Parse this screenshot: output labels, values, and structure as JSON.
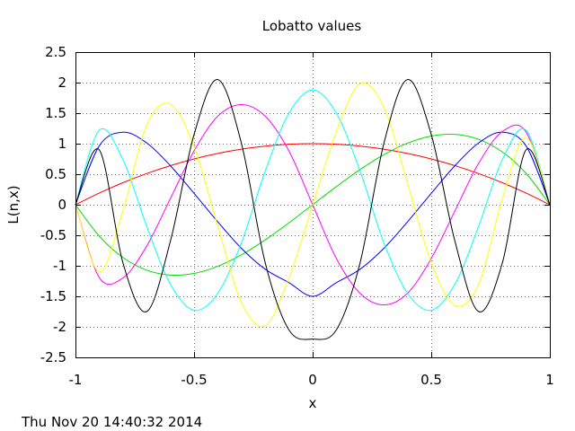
{
  "chart_data": {
    "type": "line",
    "title": "Lobatto values",
    "xlabel": "x",
    "ylabel": "L(n,x)",
    "xlim": [
      -1,
      1
    ],
    "ylim": [
      -2.5,
      2.5
    ],
    "grid": true,
    "legend": "none",
    "x_ticks": [
      "-1",
      "-0.5",
      "0",
      "0.5",
      "1"
    ],
    "y_ticks": [
      "-2.5",
      "-2",
      "-1.5",
      "-1",
      "-0.5",
      "0",
      "0.5",
      "1",
      "1.5",
      "2",
      "2.5"
    ],
    "x": [
      -1,
      -0.9,
      -0.8,
      -0.7,
      -0.6,
      -0.5,
      -0.4,
      -0.3,
      -0.2,
      -0.1,
      0,
      0.1,
      0.2,
      0.3,
      0.4,
      0.5,
      0.6,
      0.7,
      0.8,
      0.9,
      1
    ],
    "series": [
      {
        "color": "#ff0000",
        "values": [
          0,
          0.19,
          0.36,
          0.51,
          0.64,
          0.75,
          0.84,
          0.91,
          0.96,
          0.99,
          1,
          0.99,
          0.96,
          0.91,
          0.84,
          0.75,
          0.64,
          0.51,
          0.36,
          0.19,
          0
        ]
      },
      {
        "color": "#00dd00",
        "values": [
          0,
          -0.513,
          -0.864,
          -1.071,
          -1.152,
          -1.125,
          -1.008,
          -0.819,
          -0.576,
          -0.297,
          0,
          0.297,
          0.576,
          0.819,
          1.008,
          1.125,
          1.152,
          1.071,
          0.864,
          0.513,
          0
        ]
      },
      {
        "color": "#0000ff",
        "values": [
          0,
          0.962,
          1.188,
          1.013,
          0.64,
          0.187,
          -0.28,
          -0.715,
          -1.056,
          -1.276,
          -1.5,
          -1.276,
          -1.056,
          -0.715,
          -0.28,
          0.187,
          0.64,
          1.013,
          1.188,
          0.962,
          0
        ]
      },
      {
        "color": "#ff00ff",
        "values": [
          0,
          -1.19,
          -1.2,
          -0.68,
          0.1,
          0.88,
          1.45,
          1.64,
          1.45,
          0.88,
          0,
          -0.88,
          -1.45,
          -1.64,
          -1.45,
          -0.88,
          -0.1,
          0.68,
          1.2,
          1.19,
          0
        ]
      },
      {
        "color": "#00ffff",
        "values": [
          0,
          1.22,
          0.74,
          -0.35,
          -1.3,
          -1.73,
          -1.45,
          -0.62,
          0.55,
          1.5,
          1.88,
          1.5,
          0.55,
          -0.62,
          -1.45,
          -1.73,
          -1.3,
          -0.35,
          0.74,
          1.22,
          0
        ]
      },
      {
        "color": "#ffff00",
        "values": [
          0,
          -1.1,
          -0.1,
          1.3,
          1.65,
          0.95,
          -0.35,
          -1.6,
          -1.98,
          -1.2,
          0,
          1.2,
          1.98,
          1.6,
          0.35,
          -0.95,
          -1.65,
          -1.3,
          0.1,
          1.1,
          0
        ]
      },
      {
        "color": "#000000",
        "values": [
          0,
          0.9,
          -0.95,
          -1.75,
          -0.6,
          1.15,
          2.05,
          1.0,
          -0.95,
          -2.05,
          -2.2,
          -2.05,
          -0.95,
          1.0,
          2.05,
          1.15,
          -0.6,
          -1.75,
          -0.95,
          0.9,
          0
        ]
      }
    ]
  },
  "footer": {
    "timestamp": "Thu Nov 20 14:40:32 2014"
  }
}
